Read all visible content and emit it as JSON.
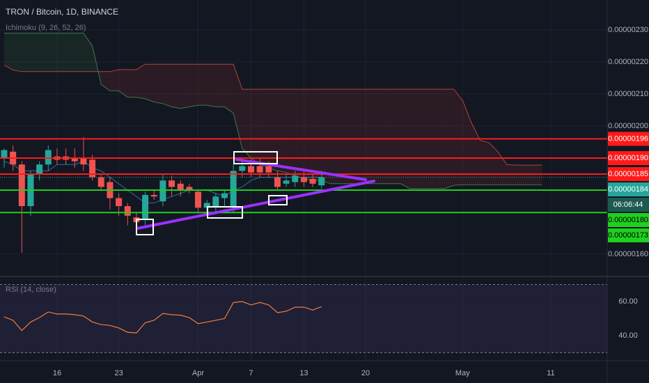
{
  "chart_data": {
    "type": "candlestick",
    "title": "TRON / Bitcoin, 1D, BINANCE",
    "categories": [
      null,
      null,
      null,
      null,
      null,
      null,
      "16",
      null,
      null,
      null,
      null,
      null,
      null,
      "23",
      null,
      null,
      null,
      null,
      null,
      null,
      null,
      null,
      "Apr",
      null,
      null,
      null,
      null,
      null,
      "7",
      null,
      null,
      null,
      null,
      null,
      "13",
      null,
      null,
      null,
      null,
      null,
      null,
      "20",
      null,
      null,
      null,
      null,
      null,
      null,
      null,
      null,
      null,
      null,
      "May",
      null,
      null,
      null,
      null,
      null,
      null,
      null,
      null,
      null,
      "11"
    ],
    "open": [
      1.9e-06,
      1.92e-06,
      1.88e-06,
      1.75e-06,
      1.85e-06,
      1.88e-06,
      1.905e-06,
      1.905e-06,
      1.9e-06,
      1.9e-06,
      1.895e-06,
      1.84e-06,
      1.825e-06,
      1.775e-06,
      1.75e-06,
      1.715e-06,
      1.71e-06,
      1.785e-06,
      1.765e-06,
      1.83e-06,
      1.82e-06,
      1.81e-06,
      1.795e-06,
      1.745e-06,
      1.75e-06,
      1.775e-06,
      1.745e-06,
      1.86e-06,
      1.875e-06,
      1.875e-06,
      1.875e-06,
      1.84e-06,
      1.82e-06,
      1.825e-06,
      1.84e-06,
      1.835e-06,
      1.815e-06,
      null,
      null,
      null,
      null,
      null,
      null,
      null,
      null,
      null,
      null,
      null,
      null,
      null,
      null,
      null,
      null,
      null,
      null,
      null,
      null,
      null,
      null,
      null,
      null,
      null,
      null
    ],
    "high": [
      1.93e-06,
      1.94e-06,
      1.89e-06,
      1.86e-06,
      1.89e-06,
      1.94e-06,
      1.93e-06,
      1.93e-06,
      1.93e-06,
      1.965e-06,
      1.91e-06,
      1.85e-06,
      1.84e-06,
      1.79e-06,
      1.76e-06,
      1.73e-06,
      1.795e-06,
      1.8e-06,
      1.85e-06,
      1.845e-06,
      1.83e-06,
      1.82e-06,
      1.8e-06,
      1.77e-06,
      1.79e-06,
      1.8e-06,
      1.88e-06,
      1.89e-06,
      1.9e-06,
      1.9e-06,
      1.89e-06,
      1.86e-06,
      1.85e-06,
      1.86e-06,
      1.86e-06,
      1.85e-06,
      1.86e-06,
      null,
      null,
      null,
      null,
      null,
      null,
      null,
      null,
      null,
      null,
      null,
      null,
      null,
      null,
      null,
      null,
      null,
      null,
      null,
      null,
      null,
      null,
      null,
      null,
      null,
      null
    ],
    "low": [
      1.87e-06,
      1.86e-06,
      1.605e-06,
      1.72e-06,
      1.83e-06,
      1.86e-06,
      1.88e-06,
      1.88e-06,
      1.87e-06,
      1.86e-06,
      1.83e-06,
      1.8e-06,
      1.74e-06,
      1.72e-06,
      1.69e-06,
      1.68e-06,
      1.69e-06,
      1.77e-06,
      1.75e-06,
      1.78e-06,
      1.78e-06,
      1.79e-06,
      1.73e-06,
      1.73e-06,
      1.73e-06,
      1.75e-06,
      1.73e-06,
      1.84e-06,
      1.84e-06,
      1.84e-06,
      1.84e-06,
      1.8e-06,
      1.81e-06,
      1.81e-06,
      1.81e-06,
      1.81e-06,
      1.805e-06,
      null,
      null,
      null,
      null,
      null,
      null,
      null,
      null,
      null,
      null,
      null,
      null,
      null,
      null,
      null,
      null,
      null,
      null,
      null,
      null,
      null,
      null,
      null,
      null,
      null,
      null
    ],
    "close": [
      1.925e-06,
      1.88e-06,
      1.75e-06,
      1.85e-06,
      1.88e-06,
      1.925e-06,
      1.895e-06,
      1.895e-06,
      1.89e-06,
      1.88e-06,
      1.84e-06,
      1.81e-06,
      1.775e-06,
      1.75e-06,
      1.72e-06,
      1.7e-06,
      1.785e-06,
      1.78e-06,
      1.83e-06,
      1.81e-06,
      1.8e-06,
      1.8e-06,
      1.745e-06,
      1.76e-06,
      1.78e-06,
      1.79e-06,
      1.86e-06,
      1.875e-06,
      1.855e-06,
      1.855e-06,
      1.855e-06,
      1.81e-06,
      1.83e-06,
      1.845e-06,
      1.825e-06,
      1.82e-06,
      1.84e-06,
      null,
      null,
      null,
      null,
      null,
      null,
      null,
      null,
      null,
      null,
      null,
      null,
      null,
      null,
      null,
      null,
      null,
      null,
      null,
      null,
      null,
      null,
      null,
      null,
      null,
      null
    ],
    "up_color": "#26a69a",
    "down_color": "#ef5350",
    "ylim": [
      1.5348e-06,
      2.3935e-06
    ],
    "yticks": [
      {
        "value": 1.6e-06,
        "label": "0.00000160"
      },
      {
        "value": 2e-06,
        "label": "0.00000200"
      },
      {
        "value": 2.1e-06,
        "label": "0.00000210"
      },
      {
        "value": 2.2e-06,
        "label": "0.00000220"
      },
      {
        "value": 2.3e-06,
        "label": "0.00000230"
      }
    ],
    "grid": true,
    "ichimoku": {
      "label": "Ichimoku (9, 26, 52, 26)",
      "cloud_up": "rgba(76,175,80,0.10)",
      "cloud_down": "rgba(244,67,54,0.10)",
      "span_a": {
        "color": "#3d7a48",
        "values": [
          2.29e-06,
          2.29e-06,
          2.29e-06,
          2.29e-06,
          2.29e-06,
          2.29e-06,
          2.29e-06,
          2.29e-06,
          2.29e-06,
          2.29e-06,
          2.25e-06,
          2.13e-06,
          2.11e-06,
          2.11e-06,
          2.09e-06,
          2.09e-06,
          2.085e-06,
          2.075e-06,
          2.07e-06,
          2.06e-06,
          2.055e-06,
          2.06e-06,
          2.065e-06,
          2.065e-06,
          2.06e-06,
          2.06e-06,
          2.04e-06,
          1.93e-06,
          1.9e-06,
          1.88e-06,
          1.87e-06,
          1.86e-06,
          1.855e-06,
          1.845e-06,
          1.835e-06,
          1.83e-06,
          1.83e-06,
          1.82e-06,
          1.82e-06,
          1.82e-06,
          1.82e-06,
          1.82e-06,
          1.82e-06,
          1.82e-06,
          1.82e-06,
          1.82e-06,
          1.805e-06,
          1.805e-06,
          1.805e-06,
          1.805e-06,
          1.805e-06,
          1.815e-06,
          1.817e-06,
          1.817e-06,
          1.817e-06,
          1.817e-06,
          1.817e-06,
          1.817e-06,
          1.817e-06,
          1.817e-06,
          1.817e-06,
          1.817e-06,
          null
        ]
      },
      "span_b": {
        "color": "#b2433a",
        "values": [
          2.19e-06,
          2.175e-06,
          2.17e-06,
          2.17e-06,
          2.17e-06,
          2.17e-06,
          2.17e-06,
          2.17e-06,
          2.17e-06,
          2.17e-06,
          2.17e-06,
          2.17e-06,
          2.17e-06,
          2.176e-06,
          2.176e-06,
          2.176e-06,
          2.193e-06,
          2.193e-06,
          2.193e-06,
          2.193e-06,
          2.193e-06,
          2.193e-06,
          2.193e-06,
          2.193e-06,
          2.193e-06,
          2.193e-06,
          2.193e-06,
          2.115e-06,
          2.115e-06,
          2.115e-06,
          2.115e-06,
          2.115e-06,
          2.115e-06,
          2.115e-06,
          2.115e-06,
          2.115e-06,
          2.115e-06,
          2.115e-06,
          2.115e-06,
          2.115e-06,
          2.115e-06,
          2.115e-06,
          2.115e-06,
          2.115e-06,
          2.115e-06,
          2.115e-06,
          2.115e-06,
          2.115e-06,
          2.115e-06,
          2.115e-06,
          2.115e-06,
          2.115e-06,
          2.08e-06,
          2.01e-06,
          1.955e-06,
          1.948e-06,
          1.92e-06,
          1.88e-06,
          1.878e-06,
          1.878e-06,
          1.878e-06,
          1.878e-06,
          null
        ]
      },
      "conversion": {
        "color": "#2a6fa8",
        "values": [
          1.89e-06,
          1.88e-06,
          1.86e-06,
          1.86e-06,
          1.86e-06,
          1.86e-06,
          1.88e-06,
          1.88e-06,
          1.88e-06,
          1.89e-06,
          1.87e-06,
          1.86e-06,
          1.84e-06,
          1.82e-06,
          1.8e-06,
          1.78e-06,
          1.76e-06,
          1.76e-06,
          1.77e-06,
          1.78e-06,
          1.79e-06,
          1.8e-06,
          1.8e-06,
          1.8e-06,
          1.79e-06,
          1.78e-06,
          1.8e-06,
          1.81e-06,
          1.83e-06,
          1.84e-06,
          1.84e-06,
          1.84e-06,
          1.84e-06,
          1.84e-06,
          1.84e-06,
          1.84e-06,
          1.84e-06,
          null,
          null,
          null,
          null,
          null,
          null,
          null,
          null,
          null,
          null,
          null,
          null,
          null,
          null,
          null,
          null,
          null,
          null,
          null,
          null,
          null,
          null,
          null,
          null,
          null,
          null
        ]
      }
    },
    "levels": [
      {
        "value": 1.96e-06,
        "label": "0.00000196",
        "color": "#ff1a1a",
        "text_color": "#ffffff"
      },
      {
        "value": 1.9e-06,
        "label": "0.00000190",
        "color": "#ff1a1a",
        "text_color": "#ffffff"
      },
      {
        "value": 1.85e-06,
        "label": "0.00000185",
        "color": "#ff1a1a",
        "text_color": "#ffffff"
      },
      {
        "value": 1.8e-06,
        "label": "0.00000180",
        "color": "#1fd01f",
        "text_color": "#000000"
      },
      {
        "value": 1.73e-06,
        "label": "0.00000173",
        "color": "#1fd01f",
        "text_color": "#000000"
      }
    ],
    "last": {
      "value": 1.84e-06,
      "label": "0.00000184",
      "countdown": "06:06:44",
      "color": "#26a69a"
    },
    "rsi": {
      "label": "RSI (14, close)",
      "color": "#f57c3b",
      "values": [
        51,
        49,
        43,
        48,
        50.6,
        53.9,
        52.7,
        52.7,
        52.3,
        51.5,
        48,
        46.5,
        46,
        44.5,
        42,
        41.6,
        47.6,
        49,
        53,
        52.3,
        52,
        50.6,
        47,
        48,
        49,
        50,
        59.4,
        60,
        58,
        59.5,
        58,
        53.5,
        54.3,
        56.7,
        56.7,
        55,
        57,
        null,
        null,
        null,
        null,
        null,
        null,
        null,
        null,
        null,
        null,
        null,
        null,
        null,
        null,
        null,
        null,
        null,
        null,
        null,
        null,
        null,
        null,
        null,
        null,
        null,
        null
      ],
      "ylim": [
        25.3,
        74.3
      ],
      "yticks": [
        {
          "value": 40,
          "label": "40.00"
        },
        {
          "value": 60,
          "label": "60.00"
        }
      ],
      "bands": [
        30,
        70
      ],
      "band_color": "rgba(126,87,194,0.12)"
    }
  }
}
